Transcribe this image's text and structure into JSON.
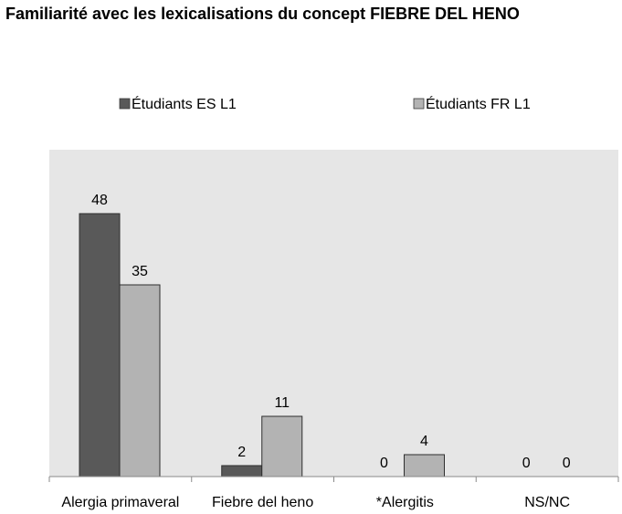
{
  "chart_data": {
    "type": "bar",
    "title": "Familiarité avec les lexicalisations du concept FIEBRE DEL HENO",
    "categories": [
      "Alergia primaveral",
      "Fiebre del heno",
      "*Alergitis",
      "NS/NC"
    ],
    "series": [
      {
        "name": "Étudiants ES L1",
        "values": [
          48,
          2,
          0,
          0
        ],
        "color": "#595959"
      },
      {
        "name": "Étudiants FR L1",
        "values": [
          35,
          11,
          4,
          0
        ],
        "color": "#b3b3b3"
      }
    ],
    "ylim": [
      0,
      50
    ],
    "grid": false,
    "legend_position": "top",
    "plot_background": "#e6e6e6",
    "data_labels": true
  }
}
